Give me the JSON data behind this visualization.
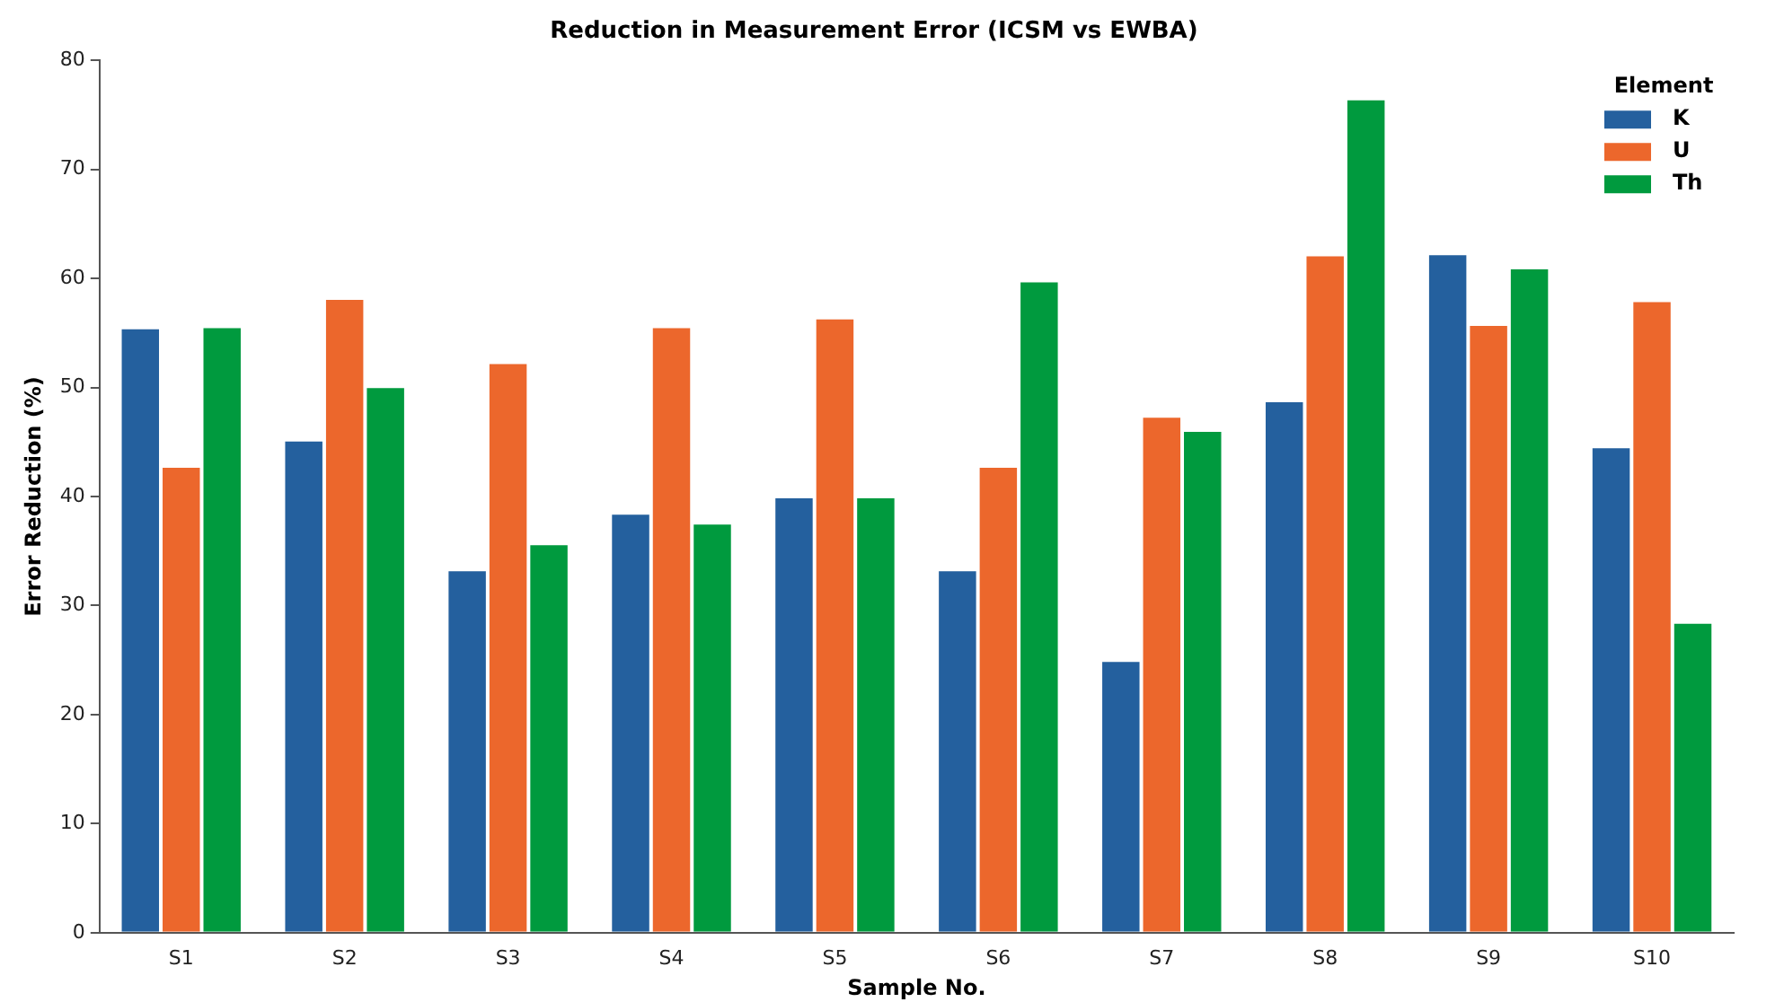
{
  "chart_data": {
    "type": "bar",
    "title": "Reduction in Measurement Error (ICSM vs EWBA)",
    "xlabel": "Sample No.",
    "ylabel": "Error Reduction (%)",
    "legend_title": "Element",
    "categories": [
      "S1",
      "S2",
      "S3",
      "S4",
      "S5",
      "S6",
      "S7",
      "S8",
      "S9",
      "S10"
    ],
    "series": [
      {
        "name": "K",
        "color": "#24609e",
        "values": [
          55.5,
          45.2,
          33.3,
          38.5,
          40.0,
          33.3,
          25.0,
          48.8,
          62.3,
          44.6
        ]
      },
      {
        "name": "U",
        "color": "#ec672c",
        "values": [
          42.8,
          58.2,
          52.3,
          55.6,
          56.4,
          42.8,
          47.4,
          62.2,
          55.8,
          58.0
        ]
      },
      {
        "name": "Th",
        "color": "#009a3e",
        "values": [
          55.6,
          50.1,
          35.7,
          37.6,
          40.0,
          59.8,
          46.1,
          76.5,
          61.0,
          28.5
        ]
      }
    ],
    "ylim": [
      0,
      80
    ],
    "yticks": [
      0,
      10,
      20,
      30,
      40,
      50,
      60,
      70,
      80
    ],
    "grid": false,
    "legend": "top right"
  }
}
